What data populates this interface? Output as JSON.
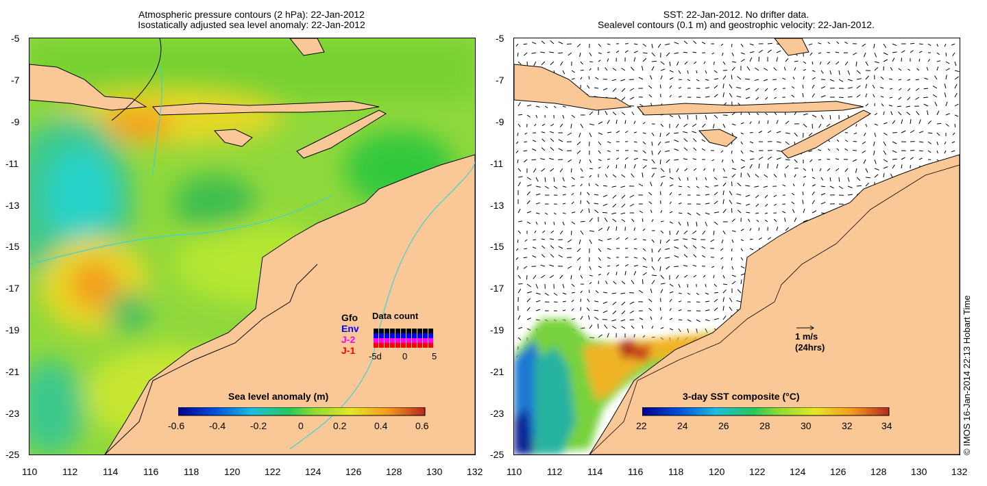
{
  "left_panel": {
    "title_line1": "Atmospheric pressure contours (2 hPa): 22-Jan-2012",
    "title_line2": "Isostatically adjusted sea level anomaly: 22-Jan-2012",
    "y_ticks": [
      "-5",
      "-7",
      "-9",
      "-11",
      "-13",
      "-15",
      "-17",
      "-19",
      "-21",
      "-23",
      "-25"
    ],
    "x_ticks": [
      "110",
      "112",
      "114",
      "116",
      "118",
      "120",
      "122",
      "124",
      "126",
      "128",
      "130",
      "132"
    ],
    "colorbar": {
      "title": "Sea level anomaly (m)",
      "ticks": [
        "-0.6",
        "-0.4",
        "-0.2",
        "0",
        "0.2",
        "0.4",
        "0.6"
      ],
      "range": [
        -0.6,
        0.6
      ]
    },
    "legend": {
      "gfo": "Gfo",
      "env": "Env",
      "j2": "J-2",
      "j1": "J-1",
      "data_count_title": "Data count",
      "dc_ticks": [
        "-5d",
        "0",
        "5"
      ],
      "colors": {
        "gfo": "#000000",
        "env": "#0000ff",
        "j2": "#ff00ff",
        "j1": "#ff0000"
      }
    }
  },
  "right_panel": {
    "title_line1": "SST: 22-Jan-2012. No drifter data.",
    "title_line2": "Sealevel contours (0.1 m) and geostrophic velocity: 22-Jan-2012.",
    "y_ticks": [
      "-5",
      "-7",
      "-9",
      "-11",
      "-13",
      "-15",
      "-17",
      "-19",
      "-21",
      "-23",
      "-25"
    ],
    "x_ticks": [
      "110",
      "112",
      "114",
      "116",
      "118",
      "120",
      "122",
      "124",
      "126",
      "128",
      "130",
      "132"
    ],
    "colorbar": {
      "title": "3-day SST composite (°C)",
      "ticks": [
        "22",
        "24",
        "26",
        "28",
        "30",
        "32",
        "34"
      ],
      "range": [
        22,
        34
      ]
    },
    "scale_label": "1 m/s",
    "scale_sublabel": "(24hrs)"
  },
  "credit": "© IMOS 16-Jan-2014 22:13 Hobart Time",
  "colors": {
    "land": "#fac896",
    "ocean_green": "#7ad23c",
    "ocean_yellow": "#c8e632",
    "anomaly_high": "#f59a1e",
    "anomaly_low": "#1ed2d2"
  }
}
